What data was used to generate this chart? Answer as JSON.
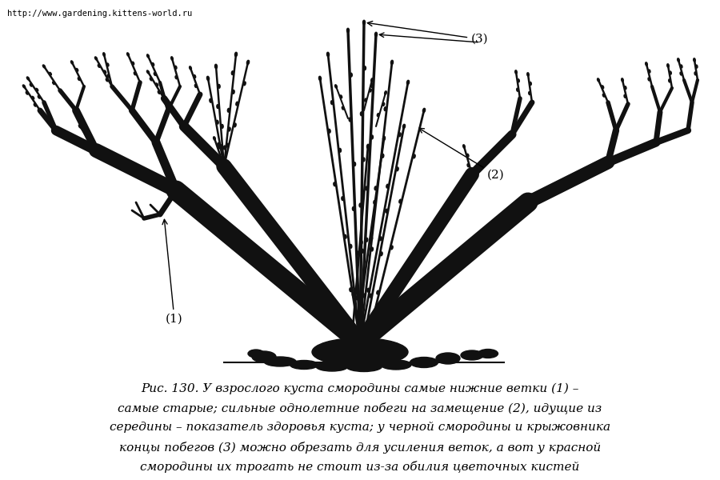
{
  "background_color": "#ffffff",
  "url_text": "http://www.gardening.kittens-world.ru",
  "url_fontsize": 7.5,
  "caption_lines": [
    "Рис. 130. У взрослого куста смородины самые нижние ветки (1) –",
    "самые старые; сильные однолетние побеги на замещение (2), идущие из",
    "середины – показатель здоровья куста; у черной смородины и крыжовника",
    "концы побегов (3) можно обрезать для усиления веток, а вот у красной",
    "смородины их трогать не стоит из-за обилия цветочных кистей"
  ],
  "caption_fontsize": 11,
  "branch_color": "#111111",
  "fig_width": 9.0,
  "fig_height": 6.0,
  "dpi": 100
}
